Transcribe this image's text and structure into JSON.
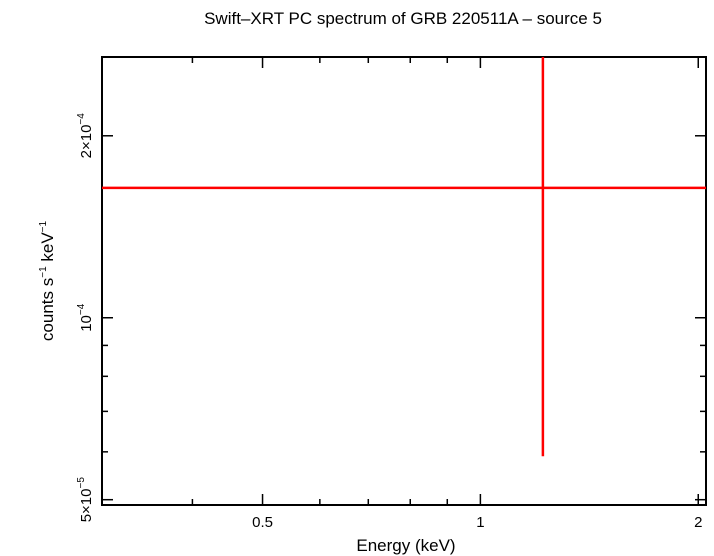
{
  "chart_data": {
    "type": "scatter",
    "title": "Swift–XRT PC spectrum of GRB 220511A – source 5",
    "xlabel": "Energy (keV)",
    "ylabel": {
      "base": "counts s",
      "exp1": "−1",
      "mid": " keV",
      "exp2": "−1"
    },
    "xscale": "log",
    "yscale": "log",
    "xlim": [
      0.3,
      2.05
    ],
    "ylim": [
      4.9e-05,
      0.00027
    ],
    "x_ticks": [
      {
        "value": 0.5,
        "label": "0.5"
      },
      {
        "value": 1,
        "label": "1"
      },
      {
        "value": 2,
        "label": "2"
      }
    ],
    "y_ticks": [
      {
        "value": 5e-05,
        "mantissa": "5×10",
        "exp": "−5"
      },
      {
        "value": 0.0001,
        "mantissa": "10",
        "exp": "−4"
      },
      {
        "value": 0.0002,
        "mantissa": "2×10",
        "exp": "−4"
      }
    ],
    "series": [
      {
        "color": "#ff0000",
        "points": [
          {
            "x": 1.22,
            "x_err": [
              0.3,
              2.05
            ],
            "y": 0.000164,
            "y_err": [
              5.9e-05,
              0.00027
            ]
          }
        ]
      }
    ]
  }
}
